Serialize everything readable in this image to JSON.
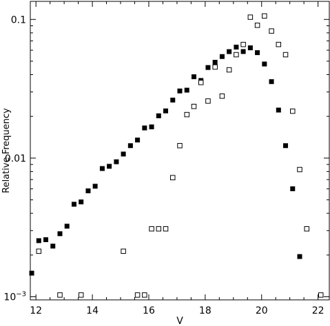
{
  "chart_data": {
    "type": "scatter",
    "xlabel": "V",
    "ylabel": "Relative Frequency",
    "yscale": "log",
    "xlim": [
      11.8,
      22.4
    ],
    "ylim": [
      0.00095,
      0.135
    ],
    "x_ticks": [
      12,
      14,
      16,
      18,
      20,
      22
    ],
    "y_ticks": [
      {
        "value": 0.1,
        "label": "0.1"
      },
      {
        "value": 0.01,
        "label": "0.01"
      },
      {
        "value": 0.001,
        "label": "10",
        "exponent": "−3"
      }
    ],
    "grid": false,
    "legend": "none",
    "series": [
      {
        "marker": "filled-square",
        "color": "#000000",
        "points": [
          [
            11.85,
            0.00148
          ],
          [
            12.1,
            0.00254
          ],
          [
            12.35,
            0.00258
          ],
          [
            12.6,
            0.00232
          ],
          [
            12.85,
            0.00285
          ],
          [
            13.1,
            0.00323
          ],
          [
            13.35,
            0.00465
          ],
          [
            13.6,
            0.00483
          ],
          [
            13.85,
            0.00581
          ],
          [
            14.1,
            0.00627
          ],
          [
            14.35,
            0.00841
          ],
          [
            14.6,
            0.00873
          ],
          [
            14.85,
            0.00941
          ],
          [
            15.1,
            0.0107
          ],
          [
            15.35,
            0.0123
          ],
          [
            15.6,
            0.0135
          ],
          [
            15.85,
            0.0165
          ],
          [
            16.1,
            0.0168
          ],
          [
            16.35,
            0.0202
          ],
          [
            16.6,
            0.0219
          ],
          [
            16.85,
            0.0262
          ],
          [
            17.1,
            0.0305
          ],
          [
            17.35,
            0.0309
          ],
          [
            17.6,
            0.0386
          ],
          [
            17.85,
            0.0363
          ],
          [
            18.1,
            0.045
          ],
          [
            18.35,
            0.0491
          ],
          [
            18.6,
            0.054
          ],
          [
            18.85,
            0.0586
          ],
          [
            19.1,
            0.0632
          ],
          [
            19.35,
            0.0587
          ],
          [
            19.6,
            0.0624
          ],
          [
            19.85,
            0.0576
          ],
          [
            20.1,
            0.0477
          ],
          [
            20.35,
            0.0356
          ],
          [
            20.6,
            0.0222
          ],
          [
            20.85,
            0.0123
          ],
          [
            21.1,
            0.00601
          ],
          [
            21.35,
            0.00195
          ]
        ]
      },
      {
        "marker": "open-square",
        "color": "#000000",
        "points": [
          [
            12.1,
            0.00213
          ],
          [
            12.85,
            0.00103
          ],
          [
            13.6,
            0.00103
          ],
          [
            15.1,
            0.00213
          ],
          [
            15.6,
            0.00103
          ],
          [
            15.85,
            0.00103
          ],
          [
            16.1,
            0.00309
          ],
          [
            16.35,
            0.00309
          ],
          [
            16.6,
            0.00309
          ],
          [
            16.85,
            0.00723
          ],
          [
            17.1,
            0.0123
          ],
          [
            17.35,
            0.0206
          ],
          [
            17.6,
            0.0236
          ],
          [
            17.85,
            0.0351
          ],
          [
            18.1,
            0.0258
          ],
          [
            18.35,
            0.0454
          ],
          [
            18.6,
            0.028
          ],
          [
            18.85,
            0.0433
          ],
          [
            19.1,
            0.0557
          ],
          [
            19.35,
            0.066
          ],
          [
            19.6,
            0.1038
          ],
          [
            19.85,
            0.0908
          ],
          [
            20.1,
            0.106
          ],
          [
            20.35,
            0.0825
          ],
          [
            20.6,
            0.066
          ],
          [
            20.85,
            0.0557
          ],
          [
            21.1,
            0.0218
          ],
          [
            21.35,
            0.00827
          ],
          [
            21.6,
            0.00309
          ],
          [
            22.1,
            0.00103
          ]
        ]
      }
    ]
  }
}
